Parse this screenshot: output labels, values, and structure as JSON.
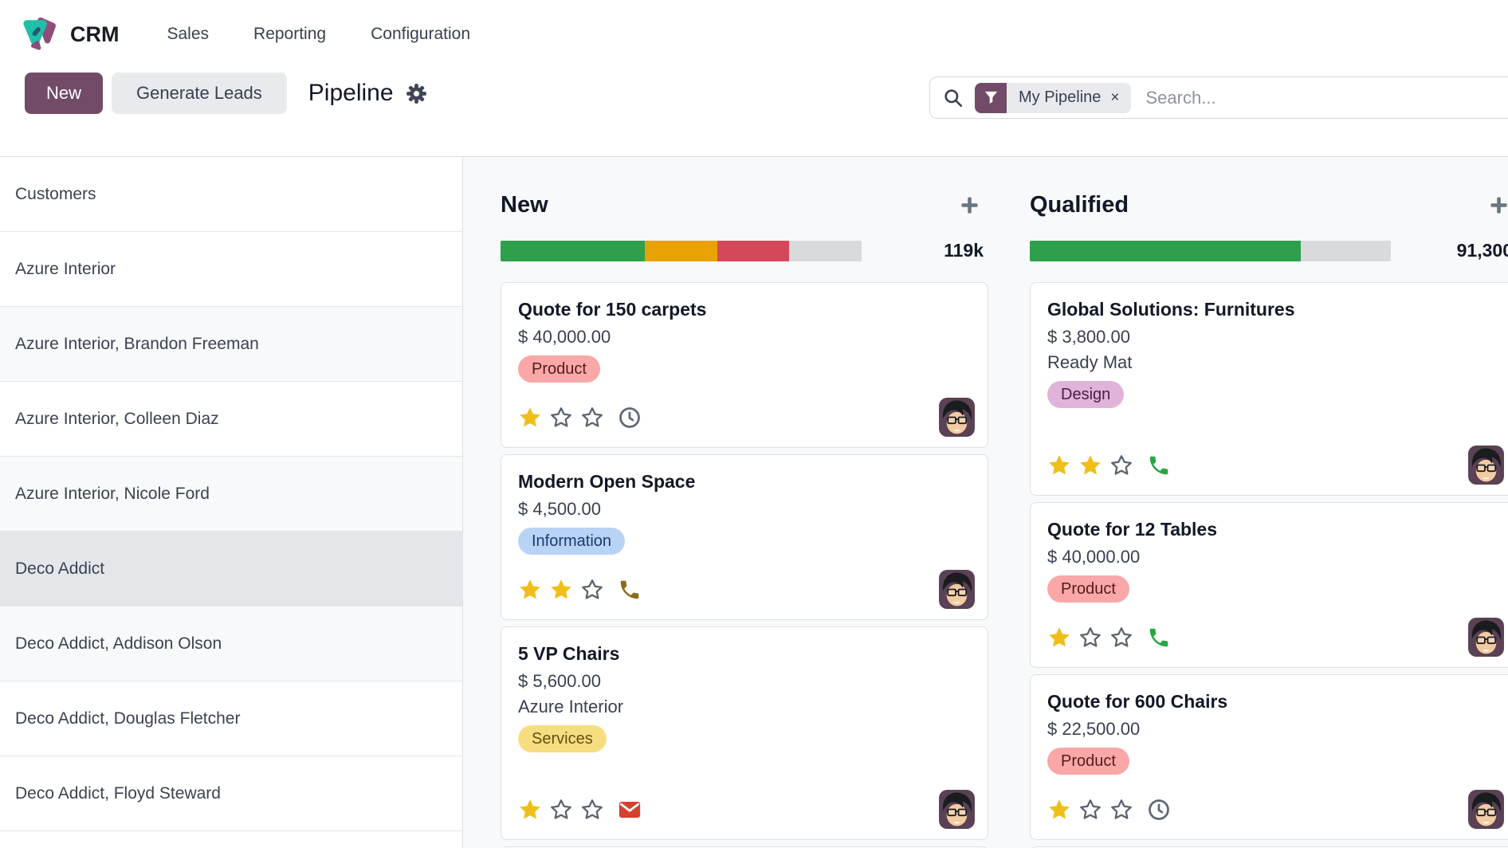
{
  "app": {
    "name": "CRM",
    "logo_icon": "crm-app-icon",
    "menus": [
      {
        "label": "Sales"
      },
      {
        "label": "Reporting"
      },
      {
        "label": "Configuration"
      }
    ]
  },
  "control": {
    "new_label": "New",
    "generate_label": "Generate Leads",
    "view_title": "Pipeline",
    "settings_icon": "gear-icon",
    "accent_color": "#714B67"
  },
  "search": {
    "search_icon": "search-icon",
    "filter_icon": "filter-icon",
    "facet_label": "My Pipeline",
    "facet_remove": "×",
    "placeholder": "Search..."
  },
  "sidebar": {
    "items": [
      {
        "label": "Customers",
        "state": "normal"
      },
      {
        "label": "Azure Interior",
        "state": "normal"
      },
      {
        "label": "Azure Interior, Brandon Freeman",
        "state": "alt"
      },
      {
        "label": "Azure Interior, Colleen Diaz",
        "state": "normal"
      },
      {
        "label": "Azure Interior, Nicole Ford",
        "state": "alt"
      },
      {
        "label": "Deco Addict",
        "state": "selected"
      },
      {
        "label": "Deco Addict, Addison Olson",
        "state": "alt"
      },
      {
        "label": "Deco Addict, Douglas Fletcher",
        "state": "normal"
      },
      {
        "label": "Deco Addict, Floyd Steward",
        "state": "normal"
      }
    ]
  },
  "columns": [
    {
      "title": "New",
      "count": "119k",
      "add_icon": "plus-icon",
      "bar": {
        "empty_color": "#d9dadc",
        "segments": [
          {
            "color": "#2ea04c",
            "pct": 40
          },
          {
            "color": "#e8a202",
            "pct": 20
          },
          {
            "color": "#d5485a",
            "pct": 20
          }
        ]
      },
      "cards": [
        {
          "title": "Quote for 150 carpets",
          "amount": "$ 40,000.00",
          "tag": {
            "label": "Product",
            "bg": "#f9a7a7",
            "fg": "#541b1b"
          },
          "stars": 1,
          "icon": "clock",
          "icon_name": "clock-icon",
          "icon_class": "ic-gray"
        },
        {
          "title": "Modern Open Space",
          "amount": "$ 4,500.00",
          "tag": {
            "label": "Information",
            "bg": "#b7d3f6",
            "fg": "#1d3a6d"
          },
          "stars": 2,
          "icon": "phone",
          "icon_name": "phone-icon",
          "icon_class": "ic-brown"
        },
        {
          "title": "5 VP Chairs",
          "amount": "$ 5,600.00",
          "company": "Azure Interior",
          "tag": {
            "label": "Services",
            "bg": "#f6dd80",
            "fg": "#61510f"
          },
          "stars": 1,
          "icon": "envelope",
          "icon_name": "envelope-icon",
          "icon_class": "ic-red"
        }
      ]
    },
    {
      "title": "Qualified",
      "count": "91,300",
      "add_icon": "plus-icon",
      "bar": {
        "empty_color": "#d9dadc",
        "segments": [
          {
            "color": "#2ea04c",
            "pct": 75
          }
        ]
      },
      "cards": [
        {
          "title": "Global Solutions: Furnitures",
          "amount": "$ 3,800.00",
          "company": "Ready Mat",
          "tag": {
            "label": "Design",
            "bg": "#dfb3da",
            "fg": "#4b1d46"
          },
          "stars": 2,
          "icon": "phone",
          "icon_name": "phone-icon",
          "icon_class": "ic-green"
        },
        {
          "title": "Quote for 12 Tables",
          "amount": "$ 40,000.00",
          "tag": {
            "label": "Product",
            "bg": "#f9a7a7",
            "fg": "#541b1b"
          },
          "stars": 1,
          "icon": "phone",
          "icon_name": "phone-icon",
          "icon_class": "ic-green"
        },
        {
          "title": "Quote for 600 Chairs",
          "amount": "$ 22,500.00",
          "tag": {
            "label": "Product",
            "bg": "#f9a7a7",
            "fg": "#541b1b"
          },
          "stars": 1,
          "icon": "clock",
          "icon_name": "clock-icon",
          "icon_class": "ic-gray"
        }
      ]
    }
  ]
}
